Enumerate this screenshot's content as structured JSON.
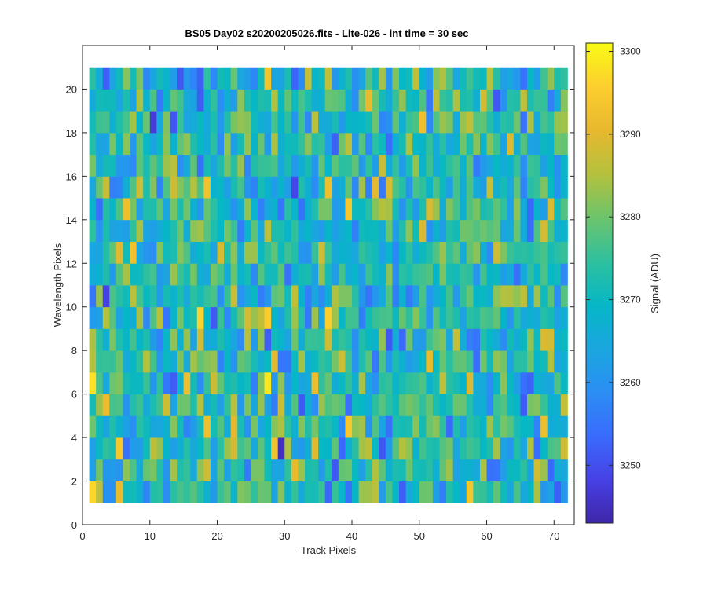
{
  "chart_data": {
    "type": "heatmap",
    "title": "BS05 Day02  s20200205026.fits - Lite-026 - int time = 30 sec",
    "xlabel": "Track Pixels",
    "ylabel": "Wavelength Pixels",
    "xlim": [
      0,
      73
    ],
    "ylim": [
      0,
      22
    ],
    "xticks": [
      0,
      10,
      20,
      30,
      40,
      50,
      60,
      70
    ],
    "yticks": [
      0,
      2,
      4,
      6,
      8,
      10,
      12,
      14,
      16,
      18,
      20
    ],
    "x_range": [
      1,
      72
    ],
    "y_range": [
      1,
      21
    ],
    "n_cols": 71,
    "n_rows": 20,
    "grid": false,
    "colormap": "parula",
    "colorbar": {
      "label": "Signal (ADU)",
      "lim": [
        3243,
        3301
      ],
      "ticks": [
        3250,
        3260,
        3270,
        3280,
        3290,
        3300
      ]
    },
    "values_description_only": false,
    "value_mean": 3272,
    "value_spread": 9
  },
  "colors": {
    "axis": "#262626",
    "parula": [
      "#3e26a8",
      "#4741e6",
      "#3a6bfd",
      "#2b8ef4",
      "#1aa6df",
      "#06b7c5",
      "#2ec09e",
      "#6dc46c",
      "#b4c13d",
      "#e7b82e",
      "#fcce2e",
      "#f9fb15"
    ]
  }
}
